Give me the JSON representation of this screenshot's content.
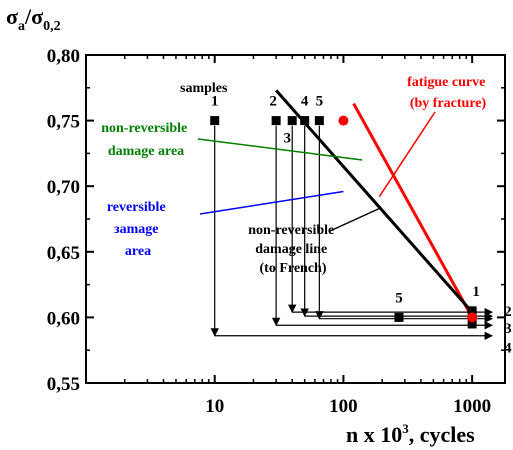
{
  "chart_data": {
    "type": "line",
    "x_scale": "log",
    "xlim": [
      1,
      1800
    ],
    "ylim": [
      0.55,
      0.8
    ],
    "x_ticks": [
      10,
      100,
      1000
    ],
    "x_tick_labels": [
      "10",
      "100",
      "1000"
    ],
    "y_ticks": [
      0.55,
      0.6,
      0.65,
      0.7,
      0.75,
      0.8
    ],
    "y_tick_labels": [
      "0,55",
      "0,60",
      "0,65",
      "0,70",
      "0,75",
      "0,80"
    ],
    "ylabel": {
      "main": "σ",
      "sub1": "a",
      "slash": "/σ",
      "sub2": "0,2"
    },
    "xlabel": {
      "main": "n x 10",
      "sup": "3",
      "tail": ", cycles"
    },
    "series": [
      {
        "name": "fatigue curve (by fracture)",
        "color": "#ff0000",
        "x": [
          120,
          1000
        ],
        "y": [
          0.763,
          0.6
        ]
      },
      {
        "name": "non-reversible damage line (to French)",
        "color": "#000000",
        "x": [
          30,
          1000
        ],
        "y": [
          0.773,
          0.604
        ]
      }
    ],
    "fatigue_points": [
      {
        "x": 100,
        "y": 0.75
      },
      {
        "x": 1000,
        "y": 0.6
      }
    ],
    "sample_points": [
      {
        "label": "1",
        "x": 10,
        "y": 0.75
      },
      {
        "label": "2",
        "x": 30,
        "y": 0.75
      },
      {
        "label": "3",
        "x": 40,
        "y": 0.75
      },
      {
        "label": "4",
        "x": 50,
        "y": 0.75
      },
      {
        "label": "5",
        "x": 65,
        "y": 0.75
      },
      {
        "label": "5",
        "x": 270,
        "y": 0.6
      },
      {
        "label": "1",
        "x": 1000,
        "y": 0.605
      },
      {
        "label": "",
        "x": 1000,
        "y": 0.595
      }
    ],
    "trajectories": [
      {
        "sample": "1",
        "x_from": 10,
        "y_from": 0.75,
        "y_level": 0.586,
        "end_label": "4",
        "end_label_y": 0.577
      },
      {
        "sample": "2",
        "x_from": 30,
        "y_from": 0.75,
        "y_level": 0.594,
        "end_label": "3",
        "end_label_y": 0.592
      },
      {
        "sample": "3",
        "x_from": 40,
        "y_from": 0.75,
        "y_level": 0.604,
        "end_label": "2",
        "end_label_y": 0.605
      },
      {
        "sample": "4",
        "x_from": 50,
        "y_from": 0.75,
        "y_level": 0.601,
        "end_label": "",
        "end_label_y": 0.601
      },
      {
        "sample": "5",
        "x_from": 65,
        "y_from": 0.75,
        "y_level": 0.599,
        "end_label": "",
        "end_label_y": 0.599
      }
    ],
    "annotations": {
      "samples": "samples",
      "fatigue_curve": [
        "fatigue curve",
        "(by fracture)"
      ],
      "non_reversible_area": [
        "non-reversible",
        "damage area"
      ],
      "reversible_area": [
        "reversible",
        "зamage",
        "area"
      ],
      "damage_line": [
        "non-reversible",
        "damage line",
        "(to French)"
      ]
    },
    "colors": {
      "fatigue": "#ff0000",
      "non_reversible_area": "#008000",
      "reversible_area": "#0000ff",
      "damage_line": "#000000"
    }
  }
}
